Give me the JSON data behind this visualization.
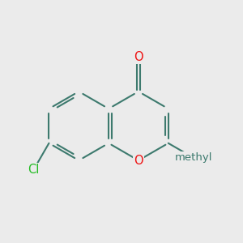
{
  "background_color": "#ebebeb",
  "bond_color": "#3d7a6e",
  "bond_width": 1.5,
  "atom_colors": {
    "O": "#ee1111",
    "Cl": "#22bb22",
    "C": "#3d7a6e"
  },
  "font_size_atom": 10.5,
  "font_size_methyl": 9.5
}
